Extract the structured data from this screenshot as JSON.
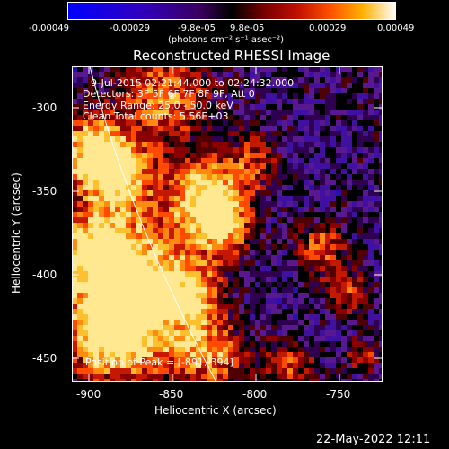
{
  "colorbar": {
    "ticks": [
      "-0.00049",
      "-0.00029",
      "-9.8e-05",
      "9.8e-05",
      "0.00029",
      "0.00049"
    ],
    "unit_label": "(photons cm⁻² s⁻¹ asec⁻²)",
    "colors": [
      "#0000ff",
      "#2a00c8",
      "#50008c",
      "#000000",
      "#640000",
      "#b40000",
      "#ff3200",
      "#ff8c00",
      "#ffd200",
      "#ffffff"
    ]
  },
  "title": "Reconstructed RHESSI Image",
  "annotations": {
    "time_range": "9-Jul-2015 02:21:44.000 to 02:24:32.000",
    "detectors": "Detectors: 3F 5F 6F 7F 8F 9F, Att 0",
    "energy": "Energy Range: 25.0 - 50.0 keV",
    "clean": "Clean     Total counts: 5.56E+03",
    "peak": "Position of Peak = [-891,-394]"
  },
  "axes": {
    "xlabel": "Heliocentric X (arcsec)",
    "ylabel": "Heliocentric Y (arcsec)",
    "xticks": [
      "-900",
      "-850",
      "-800",
      "-750"
    ],
    "yticks": [
      "-300",
      "-350",
      "-400",
      "-450"
    ],
    "xlim": [
      -915,
      -730
    ],
    "ylim": [
      -468,
      -280
    ]
  },
  "footer": {
    "timestamp": "22-May-2022 12:11"
  }
}
